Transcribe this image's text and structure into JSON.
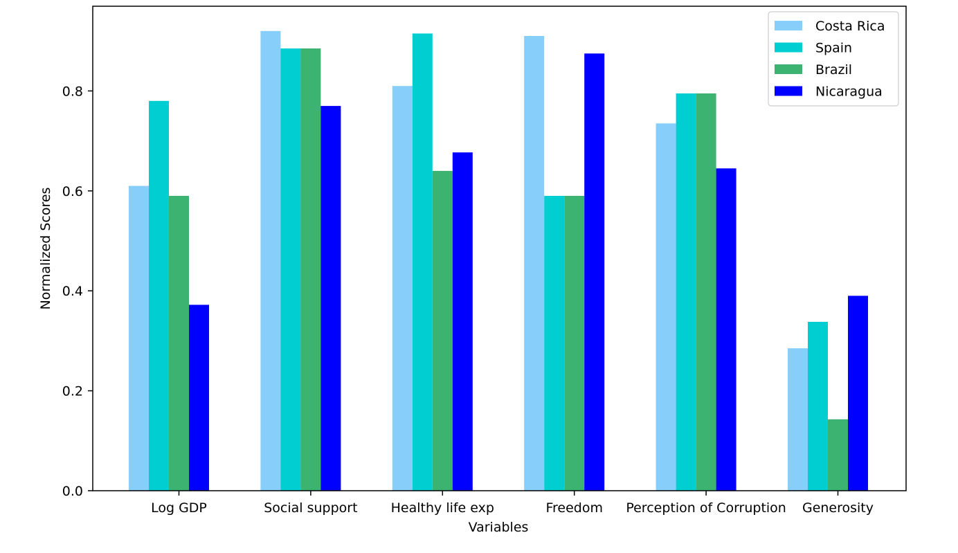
{
  "chart_data": {
    "type": "bar",
    "title": "",
    "xlabel": "Variables",
    "ylabel": "Normalized Scores",
    "categories": [
      "Log GDP",
      "Social support",
      "Healthy life exp",
      "Freedom",
      "Perception of Corruption",
      "Generosity"
    ],
    "series": [
      {
        "name": "Costa Rica",
        "color": "#87CEFA",
        "values": [
          0.61,
          0.92,
          0.81,
          0.91,
          0.735,
          0.285
        ]
      },
      {
        "name": "Spain",
        "color": "#00CED1",
        "values": [
          0.78,
          0.885,
          0.915,
          0.59,
          0.795,
          0.338
        ]
      },
      {
        "name": "Brazil",
        "color": "#3CB371",
        "values": [
          0.59,
          0.885,
          0.64,
          0.59,
          0.795,
          0.143
        ]
      },
      {
        "name": "Nicaragua",
        "color": "#0000FF",
        "values": [
          0.372,
          0.77,
          0.677,
          0.875,
          0.645,
          0.39
        ]
      }
    ],
    "yticks": [
      "0.0",
      "0.2",
      "0.4",
      "0.6",
      "0.8"
    ],
    "ylim": [
      0,
      0.97
    ],
    "grid": false,
    "legend_position": "top-right"
  }
}
